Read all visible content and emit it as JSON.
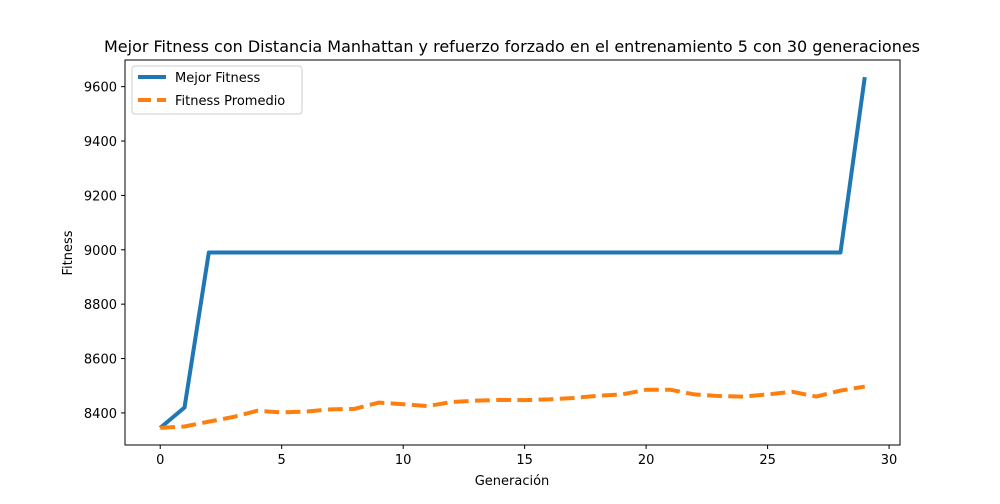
{
  "chart_data": {
    "type": "line",
    "title": "Mejor Fitness con Distancia Manhattan y refuerzo forzado en el entrenamiento 5 con 30 generaciones",
    "xlabel": "Generación",
    "ylabel": "Fitness",
    "xlim": [
      -1.45,
      30.45
    ],
    "ylim": [
      8282,
      9698
    ],
    "xticks": [
      0,
      5,
      10,
      15,
      20,
      25,
      30
    ],
    "yticks": [
      8400,
      8600,
      8800,
      9000,
      9200,
      9400,
      9600
    ],
    "grid": false,
    "legend_position": "top-left",
    "x": [
      0,
      1,
      2,
      3,
      4,
      5,
      6,
      7,
      8,
      9,
      10,
      11,
      12,
      13,
      14,
      15,
      16,
      17,
      18,
      19,
      20,
      21,
      22,
      23,
      24,
      25,
      26,
      27,
      28,
      29
    ],
    "series": [
      {
        "name": "Mejor Fitness",
        "color": "#1f77b4",
        "style": "solid",
        "values": [
          8345,
          8420,
          8990,
          8990,
          8990,
          8990,
          8990,
          8990,
          8990,
          8990,
          8990,
          8990,
          8990,
          8990,
          8990,
          8990,
          8990,
          8990,
          8990,
          8990,
          8990,
          8990,
          8990,
          8990,
          8990,
          8990,
          8990,
          8990,
          8990,
          9635
        ]
      },
      {
        "name": "Fitness Promedio",
        "color": "#ff7f0e",
        "style": "dashed",
        "values": [
          8345,
          8350,
          8368,
          8385,
          8408,
          8402,
          8405,
          8413,
          8415,
          8438,
          8432,
          8425,
          8440,
          8445,
          8448,
          8447,
          8450,
          8455,
          8463,
          8468,
          8485,
          8485,
          8468,
          8462,
          8460,
          8468,
          8478,
          8460,
          8482,
          8497
        ]
      }
    ]
  }
}
